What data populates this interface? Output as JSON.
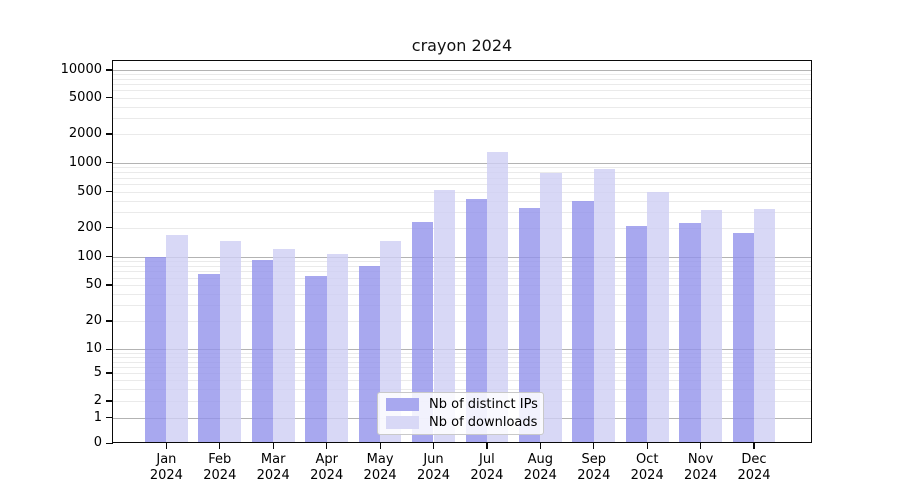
{
  "chart_data": {
    "type": "bar",
    "title": "crayon 2024",
    "categories": [
      "Jan 2024",
      "Feb 2024",
      "Mar 2024",
      "Apr 2024",
      "May 2024",
      "Jun 2024",
      "Jul 2024",
      "Aug 2024",
      "Sep 2024",
      "Oct 2024",
      "Nov 2024",
      "Dec 2024"
    ],
    "series": [
      {
        "key": "distinct-ips",
        "name": "Nb of distinct IPs",
        "legend_color": "#a8a8ef",
        "fill": "rgba(146,146,235,0.8)",
        "values": [
          100,
          66,
          92,
          63,
          80,
          230,
          415,
          330,
          395,
          210,
          224,
          178
        ]
      },
      {
        "key": "downloads",
        "name": "Nb of downloads",
        "legend_color": "#d8d8f6",
        "fill": "rgba(206,206,244,0.8)",
        "values": [
          170,
          145,
          120,
          106,
          145,
          520,
          1300,
          790,
          855,
          500,
          315,
          320
        ]
      }
    ],
    "y_axis": {
      "scale": "symlog",
      "ticks": [
        0,
        1,
        2,
        5,
        10,
        20,
        50,
        100,
        200,
        500,
        1000,
        2000,
        5000,
        10000
      ],
      "ylim": [
        0,
        12300
      ]
    },
    "x_axis": {
      "tick_label_line2": "2024"
    },
    "grid": {
      "on": true,
      "major_color": "#b3b3b3",
      "minor_color": "#eaeaea"
    },
    "legend": {
      "position": "lower center",
      "entries": [
        "Nb of distinct IPs",
        "Nb of downloads"
      ]
    }
  }
}
